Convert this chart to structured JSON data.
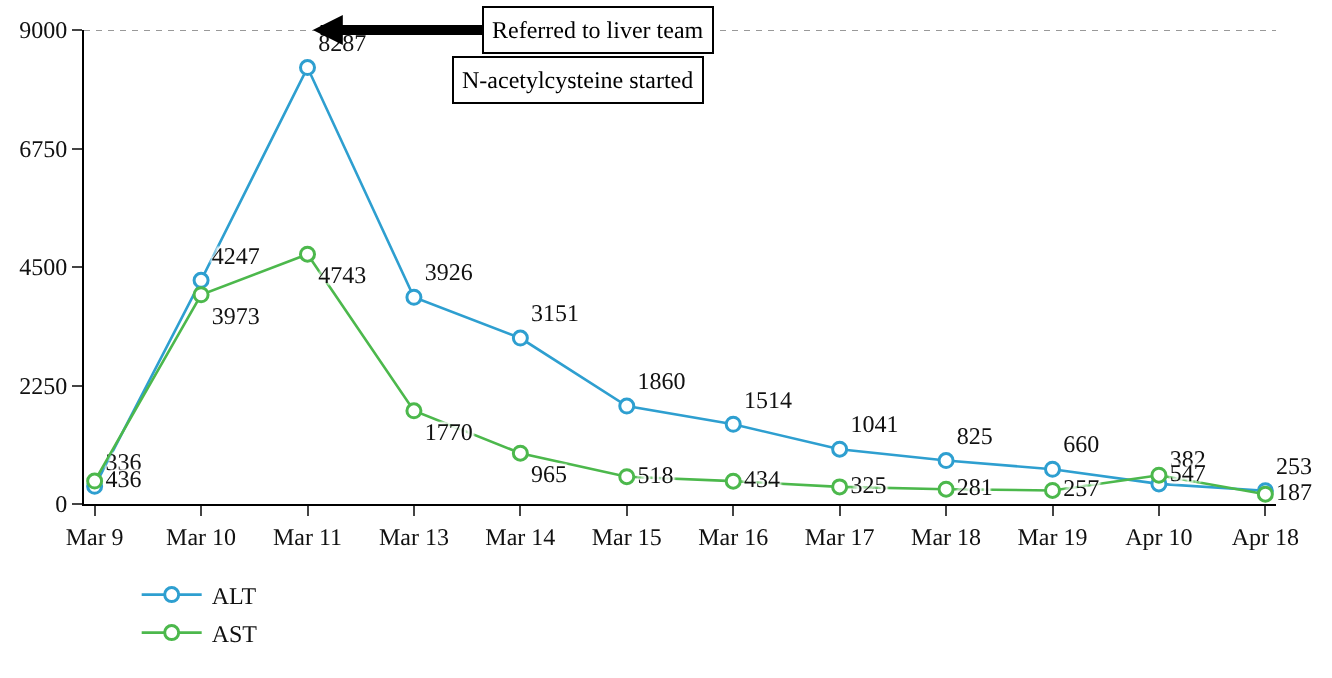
{
  "chart_data": {
    "type": "line",
    "categories": [
      "Mar 9",
      "Mar 10",
      "Mar 11",
      "Mar 13",
      "Mar 14",
      "Mar 15",
      "Mar 16",
      "Mar 17",
      "Mar 18",
      "Mar 19",
      "Apr 10",
      "Apr 18"
    ],
    "series": [
      {
        "name": "ALT",
        "color": "#2e9fd0",
        "values": [
          336,
          4247,
          8287,
          3926,
          3151,
          1860,
          1514,
          1041,
          825,
          660,
          382,
          253
        ]
      },
      {
        "name": "AST",
        "color": "#4cb84c",
        "values": [
          436,
          3973,
          4743,
          1770,
          965,
          518,
          434,
          325,
          281,
          257,
          547,
          187
        ]
      }
    ],
    "ylim": [
      0,
      9000
    ],
    "yticks": [
      0,
      2250,
      4500,
      6750,
      9000
    ],
    "data_labels": true,
    "marker": "circle",
    "line_style": "solid",
    "grid": false,
    "legend": "bottom left",
    "ref_lines": [
      {
        "axis": "y",
        "value": 9000,
        "color": "#999999",
        "line_style": "dotted"
      }
    ],
    "annotations": [
      {
        "text": "Referred to liver team",
        "x": "Mar 11",
        "y": 9000
      },
      "N-acetylcysteine started"
    ]
  }
}
